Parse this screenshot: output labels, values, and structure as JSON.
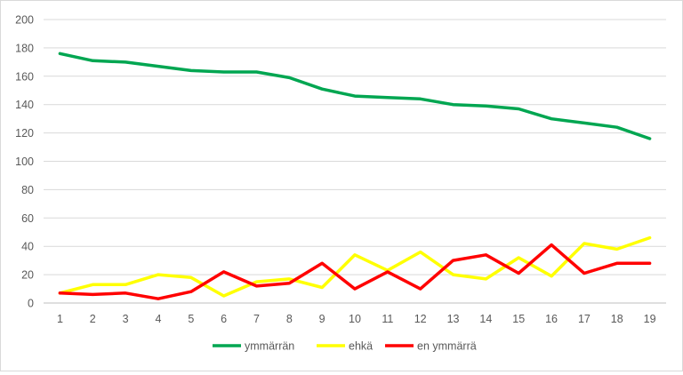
{
  "chart_data": {
    "type": "line",
    "title": "",
    "xlabel": "",
    "ylabel": "",
    "x": [
      1,
      2,
      3,
      4,
      5,
      6,
      7,
      8,
      9,
      10,
      11,
      12,
      13,
      14,
      15,
      16,
      17,
      18,
      19
    ],
    "ylim": [
      0,
      200
    ],
    "yticks": [
      0,
      20,
      40,
      60,
      80,
      100,
      120,
      140,
      160,
      180,
      200
    ],
    "grid": "horizontal",
    "legend_position": "bottom",
    "series": [
      {
        "name": "ymmärrän",
        "color": "#00a651",
        "values": [
          176,
          171,
          170,
          167,
          164,
          163,
          163,
          159,
          151,
          146,
          145,
          144,
          140,
          139,
          137,
          130,
          127,
          124,
          116
        ]
      },
      {
        "name": "ehkä",
        "color": "#ffff00",
        "values": [
          7,
          13,
          13,
          20,
          18,
          5,
          15,
          17,
          11,
          34,
          23,
          36,
          20,
          17,
          32,
          19,
          42,
          38,
          46
        ]
      },
      {
        "name": "en ymmärrä",
        "color": "#ff0000",
        "values": [
          7,
          6,
          7,
          3,
          8,
          22,
          12,
          14,
          28,
          10,
          22,
          10,
          30,
          34,
          21,
          41,
          21,
          28,
          28
        ]
      }
    ]
  }
}
